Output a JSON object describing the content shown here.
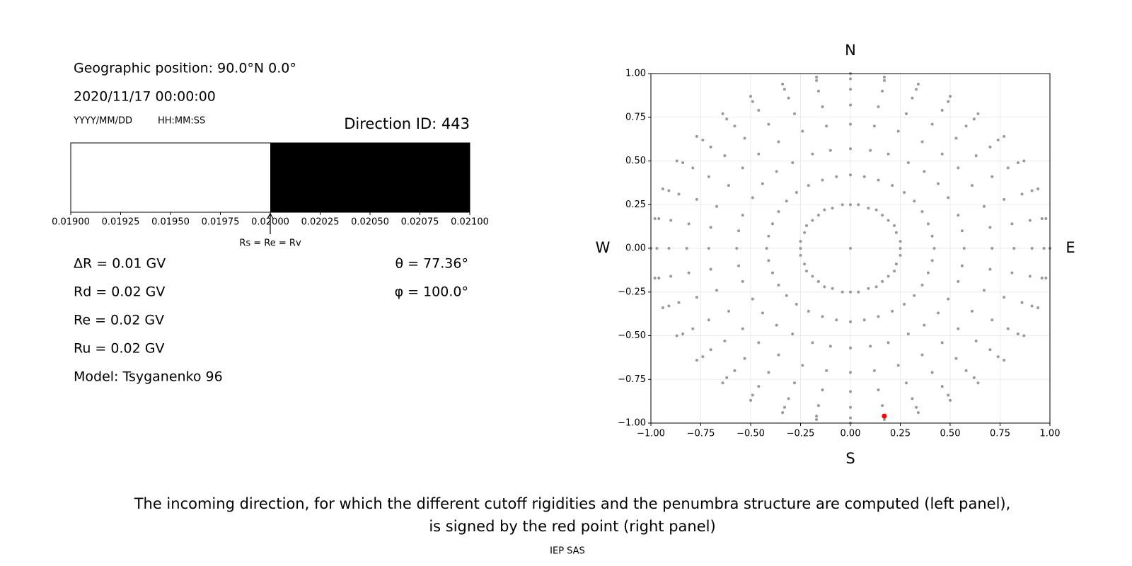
{
  "info": {
    "position": "Geographic position: 90.0°N 0.0°",
    "datetime": "2020/11/17 00:00:00",
    "date_format": "YYYY/MM/DD",
    "time_format": "HH:MM:SS",
    "rigidities": [
      "ΔR = 0.01 GV",
      "Rd = 0.02 GV",
      "Re = 0.02 GV",
      "Ru = 0.02 GV"
    ],
    "angles": [
      "θ = 77.36°",
      "φ = 100.0°"
    ],
    "model": "Model: Tsyganenko 96"
  },
  "chart_data": [
    {
      "type": "penumbra",
      "title": "Direction ID: 443",
      "xlim": [
        0.019,
        0.021
      ],
      "xticks": [
        {
          "value": 0.019,
          "label": "0.01900"
        },
        {
          "value": 0.01925,
          "label": "0.01925"
        },
        {
          "value": 0.0195,
          "label": "0.01950"
        },
        {
          "value": 0.01975,
          "label": "0.01975"
        },
        {
          "value": 0.02,
          "label": "0.02000"
        },
        {
          "value": 0.02025,
          "label": "0.02025"
        },
        {
          "value": 0.0205,
          "label": "0.02050"
        },
        {
          "value": 0.02075,
          "label": "0.02075"
        },
        {
          "value": 0.021,
          "label": "0.02100"
        }
      ],
      "segments": [
        {
          "range": [
            0.019,
            0.02
          ],
          "color": "#ffffff"
        },
        {
          "range": [
            0.02,
            0.021
          ],
          "color": "#000000"
        }
      ],
      "annotation": {
        "x": 0.02,
        "text": "Rs = Re = Rv"
      }
    },
    {
      "type": "scatter",
      "color": "#999999",
      "grid": true,
      "compass": {
        "top": "N",
        "bottom": "S",
        "left": "W",
        "right": "E"
      },
      "xlim": [
        -1,
        1
      ],
      "ylim": [
        -1,
        1
      ],
      "xticks": [
        {
          "value": -1,
          "label": "−1.00"
        },
        {
          "value": -0.75,
          "label": "−0.75"
        },
        {
          "value": -0.5,
          "label": "−0.50"
        },
        {
          "value": -0.25,
          "label": "−0.25"
        },
        {
          "value": 0,
          "label": "0.00"
        },
        {
          "value": 0.25,
          "label": "0.25"
        },
        {
          "value": 0.5,
          "label": "0.50"
        },
        {
          "value": 0.75,
          "label": "0.75"
        },
        {
          "value": 1,
          "label": "1.00"
        }
      ],
      "yticks": [
        {
          "value": -1,
          "label": "−1.00"
        },
        {
          "value": -0.75,
          "label": "−0.75"
        },
        {
          "value": -0.5,
          "label": "−0.50"
        },
        {
          "value": -0.25,
          "label": "−0.25"
        },
        {
          "value": 0,
          "label": "0.00"
        },
        {
          "value": 0.25,
          "label": "0.25"
        },
        {
          "value": 0.5,
          "label": "0.50"
        },
        {
          "value": 0.75,
          "label": "0.75"
        },
        {
          "value": 1,
          "label": "1.00"
        }
      ],
      "x": [
        0,
        0,
        0.04,
        0.09,
        0.13,
        0.16,
        0.19,
        0.22,
        0.23,
        0.25,
        0.25,
        0.25,
        0.23,
        0.22,
        0.19,
        0.16,
        0.13,
        0.09,
        0.04,
        0,
        -0.04,
        -0.09,
        -0.13,
        -0.16,
        -0.19,
        -0.22,
        -0.23,
        -0.25,
        -0.25,
        -0.25,
        -0.23,
        -0.22,
        -0.19,
        -0.16,
        -0.13,
        -0.09,
        -0.04,
        0,
        0.07,
        0.14,
        0.21,
        0.27,
        0.32,
        0.36,
        0.39,
        0.41,
        0.42,
        0.41,
        0.39,
        0.36,
        0.32,
        0.27,
        0.21,
        0.14,
        0.07,
        0,
        -0.07,
        -0.14,
        -0.21,
        -0.27,
        -0.32,
        -0.36,
        -0.39,
        -0.41,
        -0.42,
        -0.41,
        -0.39,
        -0.36,
        -0.32,
        -0.27,
        -0.21,
        -0.14,
        -0.07,
        0,
        0.1,
        0.19,
        0.29,
        0.37,
        0.44,
        0.49,
        0.54,
        0.56,
        0.57,
        0.56,
        0.54,
        0.49,
        0.44,
        0.37,
        0.29,
        0.19,
        0.1,
        0,
        -0.1,
        -0.19,
        -0.29,
        -0.37,
        -0.44,
        -0.49,
        -0.54,
        -0.56,
        -0.57,
        -0.56,
        -0.54,
        -0.49,
        -0.44,
        -0.37,
        -0.29,
        -0.19,
        -0.1,
        0,
        0.12,
        0.24,
        0.36,
        0.46,
        0.54,
        0.61,
        0.67,
        0.7,
        0.71,
        0.7,
        0.67,
        0.61,
        0.54,
        0.46,
        0.36,
        0.24,
        0.12,
        0,
        -0.12,
        -0.24,
        -0.36,
        -0.46,
        -0.54,
        -0.61,
        -0.67,
        -0.7,
        -0.71,
        -0.7,
        -0.67,
        -0.61,
        -0.54,
        -0.46,
        -0.36,
        -0.24,
        -0.12,
        0,
        0.14,
        0.28,
        0.41,
        0.53,
        0.63,
        0.71,
        0.77,
        0.81,
        0.82,
        0.81,
        0.77,
        0.71,
        0.63,
        0.53,
        0.41,
        0.28,
        0.14,
        0,
        -0.14,
        -0.28,
        -0.41,
        -0.53,
        -0.63,
        -0.71,
        -0.77,
        -0.81,
        -0.82,
        -0.81,
        -0.77,
        -0.71,
        -0.63,
        -0.53,
        -0.41,
        -0.28,
        -0.14,
        0,
        0.16,
        0.31,
        0.46,
        0.58,
        0.7,
        0.79,
        0.86,
        0.9,
        0.91,
        0.9,
        0.86,
        0.79,
        0.7,
        0.58,
        0.46,
        0.31,
        0.16,
        0,
        -0.16,
        -0.31,
        -0.46,
        -0.58,
        -0.7,
        -0.79,
        -0.86,
        -0.9,
        -0.91,
        -0.9,
        -0.86,
        -0.79,
        -0.7,
        -0.58,
        -0.46,
        -0.31,
        -0.16,
        0,
        0.17,
        0.33,
        0.49,
        0.62,
        0.74,
        0.84,
        0.91,
        0.96,
        0.97,
        0.96,
        0.91,
        0.84,
        0.74,
        0.62,
        0.49,
        0.33,
        0.17,
        0,
        -0.17,
        -0.33,
        -0.49,
        -0.62,
        -0.74,
        -0.84,
        -0.91,
        -0.96,
        -0.97,
        -0.96,
        -0.91,
        -0.84,
        -0.74,
        -0.62,
        -0.49,
        -0.33,
        -0.17,
        0,
        0.17,
        0.34,
        0.5,
        0.64,
        0.77,
        0.87,
        0.94,
        0.98,
        1,
        0.98,
        0.94,
        0.87,
        0.77,
        0.64,
        0.5,
        0.34,
        0.17,
        0,
        -0.17,
        -0.34,
        -0.5,
        -0.64,
        -0.77,
        -0.87,
        -0.94,
        -0.98,
        -1,
        -0.98,
        -0.94,
        -0.87,
        -0.77,
        -0.64,
        -0.5,
        -0.34,
        -0.17
      ],
      "y": [
        0,
        0.25,
        0.25,
        0.23,
        0.22,
        0.19,
        0.16,
        0.13,
        0.09,
        0.04,
        0,
        -0.04,
        -0.09,
        -0.13,
        -0.16,
        -0.19,
        -0.22,
        -0.23,
        -0.25,
        -0.25,
        -0.25,
        -0.23,
        -0.22,
        -0.19,
        -0.16,
        -0.13,
        -0.09,
        -0.04,
        0,
        0.04,
        0.09,
        0.13,
        0.16,
        0.19,
        0.22,
        0.23,
        0.25,
        0.42,
        0.41,
        0.39,
        0.36,
        0.32,
        0.27,
        0.21,
        0.14,
        0.07,
        0,
        -0.07,
        -0.14,
        -0.21,
        -0.27,
        -0.32,
        -0.36,
        -0.39,
        -0.41,
        -0.42,
        -0.41,
        -0.39,
        -0.36,
        -0.32,
        -0.27,
        -0.21,
        -0.14,
        -0.07,
        0,
        0.07,
        0.14,
        0.21,
        0.27,
        0.32,
        0.36,
        0.39,
        0.41,
        0.57,
        0.56,
        0.54,
        0.49,
        0.44,
        0.37,
        0.29,
        0.19,
        0.1,
        0,
        -0.1,
        -0.19,
        -0.29,
        -0.37,
        -0.44,
        -0.49,
        -0.54,
        -0.56,
        -0.57,
        -0.56,
        -0.54,
        -0.49,
        -0.44,
        -0.37,
        -0.29,
        -0.19,
        -0.1,
        0,
        0.1,
        0.19,
        0.29,
        0.37,
        0.44,
        0.49,
        0.54,
        0.56,
        0.71,
        0.7,
        0.67,
        0.61,
        0.54,
        0.46,
        0.36,
        0.24,
        0.12,
        0,
        -0.12,
        -0.24,
        -0.36,
        -0.46,
        -0.54,
        -0.61,
        -0.67,
        -0.7,
        -0.71,
        -0.7,
        -0.67,
        -0.61,
        -0.54,
        -0.46,
        -0.36,
        -0.24,
        -0.12,
        0,
        0.12,
        0.24,
        0.36,
        0.46,
        0.54,
        0.61,
        0.67,
        0.7,
        0.82,
        0.81,
        0.77,
        0.71,
        0.63,
        0.53,
        0.41,
        0.28,
        0.14,
        0,
        -0.14,
        -0.28,
        -0.41,
        -0.53,
        -0.63,
        -0.71,
        -0.77,
        -0.81,
        -0.82,
        -0.81,
        -0.77,
        -0.71,
        -0.63,
        -0.53,
        -0.41,
        -0.28,
        -0.14,
        0,
        0.14,
        0.28,
        0.41,
        0.53,
        0.63,
        0.71,
        0.77,
        0.81,
        0.91,
        0.9,
        0.86,
        0.79,
        0.7,
        0.58,
        0.46,
        0.31,
        0.16,
        0,
        -0.16,
        -0.31,
        -0.46,
        -0.58,
        -0.7,
        -0.79,
        -0.86,
        -0.9,
        -0.91,
        -0.9,
        -0.86,
        -0.79,
        -0.7,
        -0.58,
        -0.46,
        -0.31,
        -0.16,
        0,
        0.16,
        0.31,
        0.46,
        0.58,
        0.7,
        0.79,
        0.86,
        0.9,
        0.97,
        0.96,
        0.91,
        0.84,
        0.74,
        0.62,
        0.49,
        0.33,
        0.17,
        0,
        -0.17,
        -0.33,
        -0.49,
        -0.62,
        -0.74,
        -0.84,
        -0.91,
        -0.96,
        -0.97,
        -0.96,
        -0.91,
        -0.84,
        -0.74,
        -0.62,
        -0.49,
        -0.33,
        -0.17,
        0,
        0.17,
        0.33,
        0.49,
        0.62,
        0.74,
        0.84,
        0.91,
        0.96,
        1,
        0.98,
        0.94,
        0.87,
        0.77,
        0.64,
        0.5,
        0.34,
        0.17,
        0,
        -0.17,
        -0.34,
        -0.5,
        -0.64,
        -0.77,
        -0.87,
        -0.94,
        -0.98,
        -1,
        -0.98,
        -0.94,
        -0.87,
        -0.77,
        -0.64,
        -0.5,
        -0.34,
        -0.17,
        0,
        0.17,
        0.34,
        0.5,
        0.64,
        0.77,
        0.87,
        0.94,
        0.98
      ],
      "highlight": {
        "x": 0.17,
        "y": -0.96,
        "color": "#ff0000"
      }
    }
  ],
  "caption": [
    "The incoming direction, for which the different cutoff rigidities and the penumbra structure are computed (left panel),",
    "is signed by the red point (right panel)"
  ],
  "footer": "IEP SAS"
}
